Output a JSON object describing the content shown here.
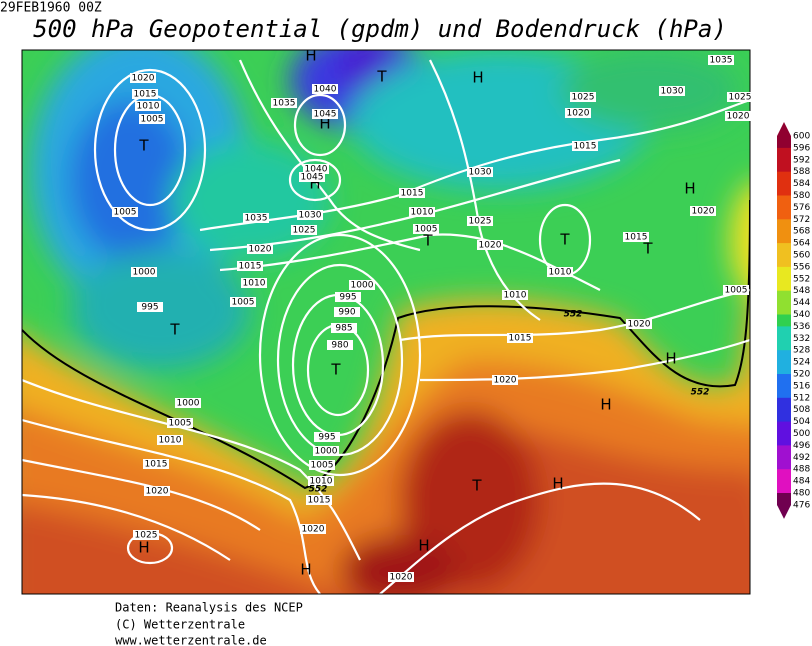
{
  "header": {
    "datetime": "29FEB1960 00Z",
    "title": "500 hPa Geopotential (gpdm) und Bodendruck (hPa)"
  },
  "map": {
    "pressure_centers": [
      "H",
      "T",
      "H",
      "H",
      "H",
      "T",
      "T",
      "T",
      "T",
      "H",
      "T",
      "T",
      "H",
      "H",
      "T",
      "H",
      "H",
      "H",
      "H"
    ],
    "isobar_labels": [
      1020,
      1015,
      1010,
      1005,
      1035,
      1040,
      1045,
      1040,
      1045,
      1035,
      1030,
      1025,
      1020,
      1015,
      1010,
      1005,
      1005,
      1000,
      995,
      1000,
      995,
      990,
      985,
      980,
      1015,
      1010,
      1005,
      1030,
      1025,
      1020,
      1025,
      1020,
      1015,
      1030,
      1035,
      1025,
      1020,
      1020,
      1015,
      1010,
      1010,
      1005,
      1020,
      1015,
      1020,
      1000,
      1005,
      1010,
      1015,
      1020,
      995,
      1000,
      1005,
      1010,
      1015,
      1020,
      1025,
      1020
    ],
    "contour_labels": [
      552,
      552,
      552
    ]
  },
  "colorbar": {
    "labels": [
      600,
      596,
      592,
      588,
      584,
      580,
      576,
      572,
      568,
      564,
      560,
      556,
      552,
      548,
      544,
      540,
      536,
      532,
      528,
      524,
      520,
      516,
      512,
      508,
      504,
      500,
      496,
      492,
      488,
      484,
      480,
      476
    ]
  },
  "footer": {
    "lines": [
      "Daten: Reanalysis des NCEP",
      "(C) Wetterzentrale",
      "www.wetterzentrale.de"
    ]
  }
}
